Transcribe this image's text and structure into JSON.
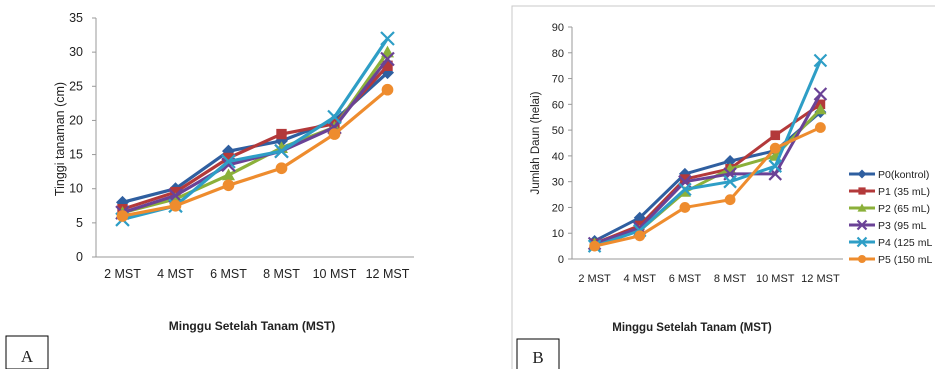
{
  "panels": [
    {
      "letter": "A",
      "xlabel": "Minggu Setelah Tanam (MST)",
      "ylabel": "Tinggi tanaman  (cm)"
    },
    {
      "letter": "B",
      "xlabel": "Minggu Setelah Tanam (MST)",
      "ylabel": "Jumlah Daun (helai)"
    }
  ],
  "legend": [
    {
      "label": "P0(kontrol)",
      "color": "#2f5fa0",
      "marker": "diamond"
    },
    {
      "label": "P1 (35 mL)",
      "color": "#b3393a",
      "marker": "square"
    },
    {
      "label": "P2 (65 mL)",
      "color": "#8bb03a",
      "marker": "triangle"
    },
    {
      "label": "P3 (95  mL",
      "color": "#6a4296",
      "marker": "x"
    },
    {
      "label": "P4 (125 mL",
      "color": "#2e9ec6",
      "marker": "x"
    },
    {
      "label": "P5 (150 mL",
      "color": "#ee8c2e",
      "marker": "circle"
    }
  ],
  "chart_data": [
    {
      "type": "line",
      "categories": [
        "2 MST",
        "4 MST",
        "6 MST",
        "8 MST",
        "10 MST",
        "12 MST"
      ],
      "ylim": [
        0,
        35
      ],
      "yticks": [
        0,
        5,
        10,
        15,
        20,
        25,
        30,
        35
      ],
      "xlabel": "Minggu Setelah Tanam (MST)",
      "ylabel": "Tinggi tanaman  (cm)",
      "grid": false,
      "series": [
        {
          "name": "P0(kontrol)",
          "values": [
            8,
            10,
            15.5,
            17,
            20,
            27
          ]
        },
        {
          "name": "P1 (35 mL)",
          "values": [
            7,
            9.5,
            14.5,
            18,
            19.5,
            28
          ]
        },
        {
          "name": "P2 (65 mL)",
          "values": [
            6.5,
            8.5,
            12,
            16,
            19,
            30
          ]
        },
        {
          "name": "P3 (95  mL",
          "values": [
            6.5,
            9,
            13.5,
            15.5,
            19,
            29
          ]
        },
        {
          "name": "P4 (125 mL",
          "values": [
            5.5,
            7.5,
            14,
            15.5,
            20.5,
            32
          ]
        },
        {
          "name": "P5 (150 mL",
          "values": [
            6,
            7.5,
            10.5,
            13,
            18,
            24.5
          ]
        }
      ]
    },
    {
      "type": "line",
      "categories": [
        "2 MST",
        "4 MST",
        "6 MST",
        "8 MST",
        "10 MST",
        "12 MST"
      ],
      "ylim": [
        0,
        90
      ],
      "yticks": [
        0,
        10,
        20,
        30,
        40,
        50,
        60,
        70,
        80,
        90
      ],
      "xlabel": "Minggu Setelah Tanam (MST)",
      "ylabel": "Jumlah Daun (helai)",
      "grid": false,
      "legend_position": "right",
      "series": [
        {
          "name": "P0(kontrol)",
          "values": [
            7,
            16,
            33,
            38,
            42,
            57
          ]
        },
        {
          "name": "P1 (35 mL)",
          "values": [
            6,
            13,
            31,
            35,
            48,
            60
          ]
        },
        {
          "name": "P2 (65 mL)",
          "values": [
            6,
            11,
            26,
            35,
            40,
            58
          ]
        },
        {
          "name": "P3 (95  mL",
          "values": [
            6,
            12,
            30,
            33,
            33,
            64
          ]
        },
        {
          "name": "P4 (125 mL",
          "values": [
            5,
            11,
            27,
            30,
            36,
            77
          ]
        },
        {
          "name": "P5 (150 mL",
          "values": [
            5,
            9,
            20,
            23,
            43,
            51
          ]
        }
      ]
    }
  ]
}
